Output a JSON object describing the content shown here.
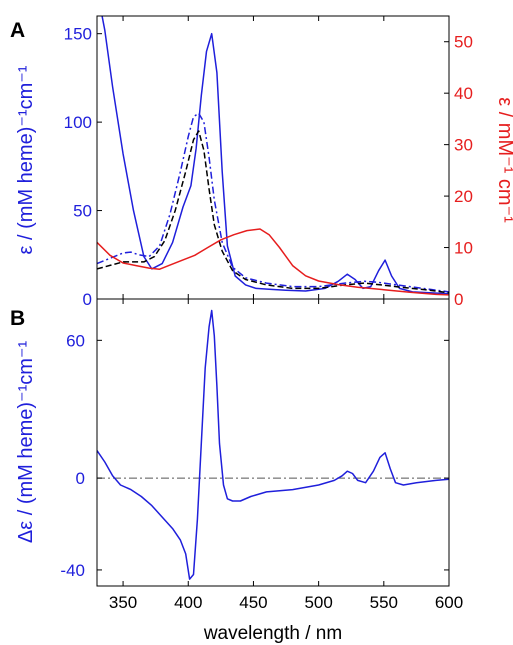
{
  "panel_labels": [
    "A",
    "B"
  ],
  "xlabel": "wavelength / nm",
  "colors": {
    "blue": "#1f1fdb",
    "red": "#e61e1e",
    "black": "#000000",
    "grey": "#555555"
  },
  "chart_data": [
    {
      "panel": "A",
      "type": "line",
      "xlim": [
        330,
        600
      ],
      "ylim_left": [
        0,
        160
      ],
      "ylim_right": [
        0,
        55
      ],
      "ylabel_left": "ε / (mM heme)⁻¹cm⁻¹",
      "ylabel_right": "ε / mM⁻¹ cm⁻¹",
      "xticks": [
        350,
        400,
        450,
        500,
        550,
        600
      ],
      "yticks_left": [
        0,
        50,
        100,
        150
      ],
      "yticks_right": [
        0,
        10,
        20,
        30,
        40,
        50
      ],
      "series": [
        {
          "style": "blue-solid",
          "axis": "left",
          "x": [
            330,
            336,
            342,
            350,
            358,
            366,
            372,
            380,
            388,
            396,
            402,
            406,
            410,
            414,
            418,
            422,
            426,
            430,
            436,
            444,
            452,
            462,
            475,
            490,
            505,
            515,
            522,
            528,
            534,
            540,
            546,
            551,
            556,
            562,
            572,
            585,
            600
          ],
          "y": [
            175,
            152,
            120,
            82,
            50,
            24,
            17,
            20,
            32,
            52,
            64,
            85,
            115,
            140,
            150,
            128,
            72,
            30,
            13,
            8,
            6,
            5.5,
            5,
            4.5,
            6,
            10,
            14,
            11,
            6,
            7,
            16,
            22,
            13,
            6,
            4,
            3.5,
            3
          ]
        },
        {
          "style": "blue-dashdot",
          "axis": "left",
          "x": [
            330,
            340,
            350,
            356,
            362,
            370,
            378,
            386,
            394,
            400,
            404,
            408,
            412,
            416,
            420,
            426,
            434,
            444,
            460,
            480,
            500,
            520,
            535,
            545,
            560,
            580,
            600
          ],
          "y": [
            20,
            23,
            26,
            26.5,
            25,
            24,
            30,
            48,
            72,
            92,
            103,
            105,
            100,
            80,
            56,
            32,
            18,
            12,
            9,
            7,
            7,
            9,
            10,
            9.5,
            8,
            6,
            4
          ]
        },
        {
          "style": "black-dashed",
          "axis": "left",
          "x": [
            330,
            340,
            350,
            358,
            366,
            374,
            382,
            390,
            398,
            404,
            408,
            412,
            416,
            420,
            426,
            434,
            444,
            460,
            480,
            500,
            520,
            535,
            548,
            565,
            585,
            600
          ],
          "y": [
            17,
            19,
            21,
            21,
            21,
            24,
            33,
            50,
            72,
            90,
            95,
            84,
            62,
            42,
            27,
            16,
            11,
            8,
            6,
            6,
            8,
            9,
            8,
            6.5,
            5,
            3.5
          ]
        },
        {
          "style": "red-solid",
          "axis": "right",
          "x": [
            330,
            340,
            350,
            360,
            370,
            378,
            385,
            395,
            405,
            415,
            425,
            435,
            445,
            455,
            462,
            470,
            480,
            490,
            500,
            515,
            530,
            550,
            570,
            590,
            600
          ],
          "y": [
            11,
            8.5,
            7,
            6.5,
            6,
            5.8,
            6.5,
            7.5,
            8.5,
            10,
            11.5,
            12.5,
            13.3,
            13.6,
            12.5,
            10,
            6.5,
            4.5,
            3.5,
            2.8,
            2.3,
            1.8,
            1.3,
            0.9,
            0.8
          ]
        }
      ]
    },
    {
      "panel": "B",
      "type": "line",
      "xlim": [
        330,
        600
      ],
      "ylim": [
        -47,
        78
      ],
      "ylabel": "Δε / (mM heme)⁻¹cm⁻¹",
      "xticks": [
        350,
        400,
        450,
        500,
        550,
        600
      ],
      "xtick_labels": [
        "350",
        "400",
        "450",
        "500",
        "550",
        "600"
      ],
      "yticks": [
        -40,
        0,
        60
      ],
      "ytick_labels": [
        "-40",
        "0",
        "60"
      ],
      "series": [
        {
          "style": "blue-solid",
          "x": [
            330,
            336,
            342,
            348,
            356,
            364,
            372,
            380,
            388,
            394,
            398,
            401,
            404,
            407,
            410,
            413,
            416,
            418,
            420,
            422,
            424,
            427,
            430,
            434,
            440,
            448,
            460,
            480,
            500,
            512,
            518,
            522,
            526,
            530,
            536,
            542,
            547,
            551,
            555,
            559,
            565,
            575,
            590,
            600
          ],
          "y": [
            12,
            7,
            1,
            -3,
            -5,
            -8,
            -12,
            -17,
            -22,
            -27,
            -33,
            -44,
            -42,
            -18,
            15,
            48,
            66,
            73,
            62,
            40,
            15,
            -3,
            -9,
            -10,
            -10,
            -8,
            -6,
            -5,
            -3,
            -1,
            1,
            3,
            2,
            -1,
            -2,
            3,
            9,
            11,
            4,
            -2,
            -3,
            -2,
            -1,
            -0.5
          ]
        },
        {
          "style": "grey-dashdot",
          "x": [
            330,
            600
          ],
          "y": [
            0,
            0
          ]
        }
      ]
    }
  ]
}
